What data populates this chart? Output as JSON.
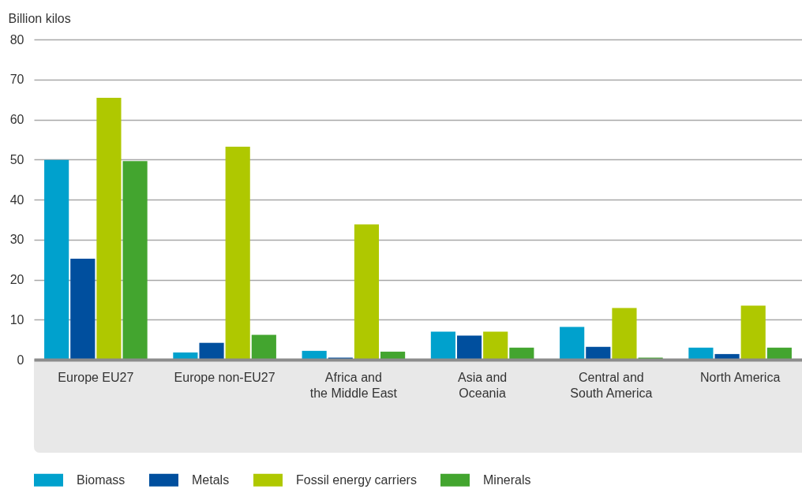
{
  "chart_data": {
    "type": "bar",
    "ylabel": "Billion kilos",
    "categories": [
      "Europe EU27",
      "Europe non-EU27",
      "Africa and the Middle East",
      "Asia and Oceania",
      "Central and South America",
      "North America"
    ],
    "series": [
      {
        "name": "Biomass",
        "color": "#00a1cd",
        "values": [
          49.9,
          1.8,
          2.2,
          7.0,
          8.2,
          3.0
        ]
      },
      {
        "name": "Metals",
        "color": "#004f9e",
        "values": [
          25.2,
          4.2,
          0.5,
          6.0,
          3.2,
          1.4
        ]
      },
      {
        "name": "Fossil energy carriers",
        "color": "#afc800",
        "values": [
          65.4,
          53.2,
          33.8,
          7.0,
          12.9,
          13.5
        ]
      },
      {
        "name": "Minerals",
        "color": "#43a52f",
        "values": [
          49.6,
          6.2,
          2.0,
          3.0,
          0.5,
          3.0
        ]
      }
    ],
    "ylim": [
      0,
      80
    ],
    "yticks": [
      0,
      10,
      20,
      30,
      40,
      50,
      60,
      70,
      80
    ],
    "grid": "y",
    "legend": "bottom"
  }
}
